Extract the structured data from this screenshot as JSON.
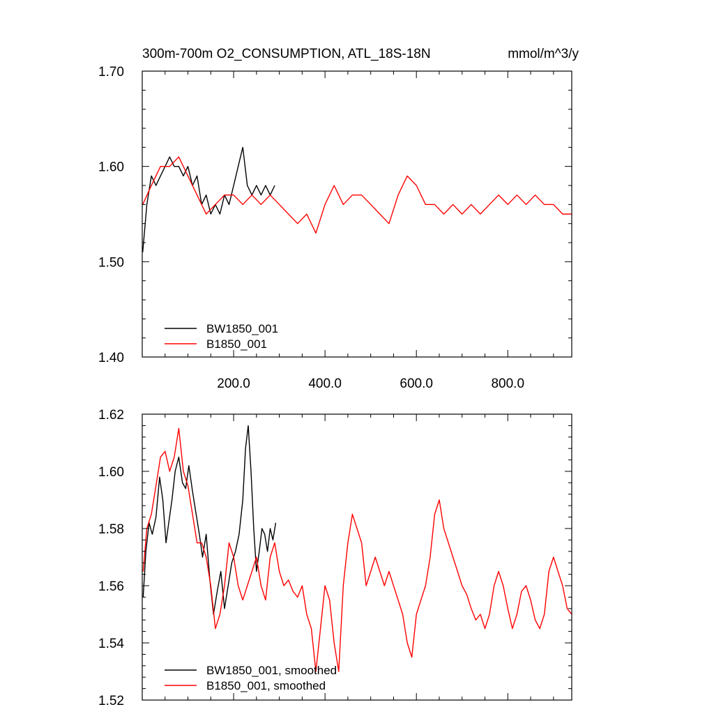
{
  "chart_data": [
    {
      "type": "line",
      "title": "300m-700m O2_CONSUMPTION, ATL_18S-18N",
      "units": "mmol/m^3/y",
      "xlim": [
        0,
        940
      ],
      "ylim": [
        1.4,
        1.7
      ],
      "xticks": [
        200,
        400,
        600,
        800
      ],
      "xtick_labels": [
        "200.0",
        "400.0",
        "600.0",
        "800.0"
      ],
      "yticks": [
        1.4,
        1.5,
        1.6,
        1.7
      ],
      "ytick_labels": [
        "1.40",
        "1.50",
        "1.60",
        "1.70"
      ],
      "grid": false,
      "legend": "bottom-left",
      "series": [
        {
          "name": "BW1850_001",
          "color": "#000000",
          "x": [
            1,
            10,
            20,
            30,
            40,
            50,
            60,
            70,
            80,
            90,
            100,
            110,
            120,
            130,
            140,
            150,
            160,
            170,
            180,
            190,
            200,
            210,
            220,
            230,
            240,
            250,
            260,
            270,
            280,
            290
          ],
          "y": [
            1.51,
            1.56,
            1.59,
            1.58,
            1.59,
            1.6,
            1.61,
            1.6,
            1.6,
            1.59,
            1.6,
            1.58,
            1.59,
            1.56,
            1.57,
            1.55,
            1.56,
            1.55,
            1.57,
            1.56,
            1.58,
            1.6,
            1.62,
            1.58,
            1.57,
            1.58,
            1.57,
            1.58,
            1.57,
            1.58
          ]
        },
        {
          "name": "B1850_001",
          "color": "#ff0000",
          "x": [
            1,
            20,
            40,
            60,
            80,
            100,
            120,
            140,
            160,
            180,
            200,
            220,
            240,
            260,
            280,
            300,
            320,
            340,
            360,
            380,
            400,
            420,
            440,
            460,
            480,
            500,
            520,
            540,
            560,
            580,
            600,
            620,
            640,
            660,
            680,
            700,
            720,
            740,
            760,
            780,
            800,
            820,
            840,
            860,
            880,
            900,
            920,
            940
          ],
          "y": [
            1.56,
            1.58,
            1.6,
            1.6,
            1.61,
            1.59,
            1.57,
            1.55,
            1.56,
            1.57,
            1.57,
            1.56,
            1.57,
            1.56,
            1.57,
            1.56,
            1.55,
            1.54,
            1.55,
            1.53,
            1.56,
            1.58,
            1.56,
            1.57,
            1.57,
            1.56,
            1.55,
            1.54,
            1.57,
            1.59,
            1.58,
            1.56,
            1.56,
            1.55,
            1.56,
            1.55,
            1.56,
            1.55,
            1.56,
            1.57,
            1.56,
            1.57,
            1.56,
            1.57,
            1.56,
            1.56,
            1.55,
            1.55
          ]
        }
      ]
    },
    {
      "type": "line",
      "xlim": [
        0,
        940
      ],
      "ylim": [
        1.52,
        1.62
      ],
      "xticks": [
        200,
        400,
        600,
        800
      ],
      "yticks": [
        1.52,
        1.54,
        1.56,
        1.58,
        1.6,
        1.62
      ],
      "ytick_labels": [
        "1.52",
        "1.54",
        "1.56",
        "1.58",
        "1.60",
        "1.62"
      ],
      "grid": false,
      "legend": "bottom-left",
      "series": [
        {
          "name": "BW1850_001, smoothed",
          "color": "#000000",
          "x": [
            2,
            8,
            15,
            22,
            30,
            38,
            45,
            52,
            58,
            65,
            72,
            80,
            88,
            95,
            102,
            110,
            118,
            125,
            132,
            140,
            148,
            156,
            164,
            172,
            180,
            188,
            196,
            204,
            212,
            220,
            226,
            232,
            238,
            244,
            250,
            256,
            262,
            268,
            274,
            280,
            286,
            292
          ],
          "y": [
            1.556,
            1.572,
            1.582,
            1.578,
            1.584,
            1.598,
            1.59,
            1.575,
            1.582,
            1.59,
            1.6,
            1.605,
            1.596,
            1.594,
            1.602,
            1.593,
            1.585,
            1.578,
            1.57,
            1.578,
            1.562,
            1.55,
            1.558,
            1.565,
            1.552,
            1.56,
            1.568,
            1.572,
            1.578,
            1.59,
            1.608,
            1.616,
            1.6,
            1.58,
            1.565,
            1.572,
            1.58,
            1.578,
            1.572,
            1.58,
            1.576,
            1.582
          ]
        },
        {
          "name": "B1850_001, smoothed",
          "color": "#ff0000",
          "x": [
            2,
            10,
            20,
            30,
            40,
            50,
            60,
            70,
            80,
            90,
            100,
            110,
            120,
            130,
            140,
            150,
            160,
            170,
            180,
            190,
            200,
            210,
            220,
            230,
            240,
            250,
            260,
            270,
            280,
            290,
            300,
            310,
            320,
            330,
            340,
            350,
            360,
            370,
            380,
            390,
            400,
            410,
            420,
            430,
            440,
            450,
            460,
            470,
            480,
            490,
            500,
            510,
            520,
            530,
            540,
            550,
            560,
            570,
            580,
            590,
            600,
            610,
            620,
            630,
            640,
            650,
            660,
            670,
            680,
            690,
            700,
            710,
            720,
            730,
            740,
            750,
            760,
            770,
            780,
            790,
            800,
            810,
            820,
            830,
            840,
            850,
            860,
            870,
            880,
            890,
            900,
            910,
            920,
            930,
            940
          ],
          "y": [
            1.565,
            1.58,
            1.585,
            1.595,
            1.605,
            1.607,
            1.6,
            1.605,
            1.615,
            1.6,
            1.595,
            1.585,
            1.575,
            1.575,
            1.57,
            1.56,
            1.545,
            1.55,
            1.56,
            1.575,
            1.57,
            1.56,
            1.555,
            1.56,
            1.565,
            1.57,
            1.56,
            1.555,
            1.57,
            1.575,
            1.565,
            1.56,
            1.562,
            1.558,
            1.556,
            1.56,
            1.55,
            1.545,
            1.53,
            1.545,
            1.56,
            1.555,
            1.54,
            1.53,
            1.56,
            1.575,
            1.585,
            1.58,
            1.575,
            1.56,
            1.565,
            1.57,
            1.565,
            1.56,
            1.565,
            1.56,
            1.555,
            1.55,
            1.54,
            1.535,
            1.55,
            1.555,
            1.56,
            1.57,
            1.585,
            1.59,
            1.58,
            1.575,
            1.57,
            1.565,
            1.56,
            1.557,
            1.552,
            1.548,
            1.55,
            1.545,
            1.55,
            1.56,
            1.565,
            1.56,
            1.552,
            1.545,
            1.55,
            1.558,
            1.56,
            1.555,
            1.548,
            1.545,
            1.55,
            1.565,
            1.57,
            1.565,
            1.56,
            1.552,
            1.55
          ]
        }
      ]
    }
  ]
}
